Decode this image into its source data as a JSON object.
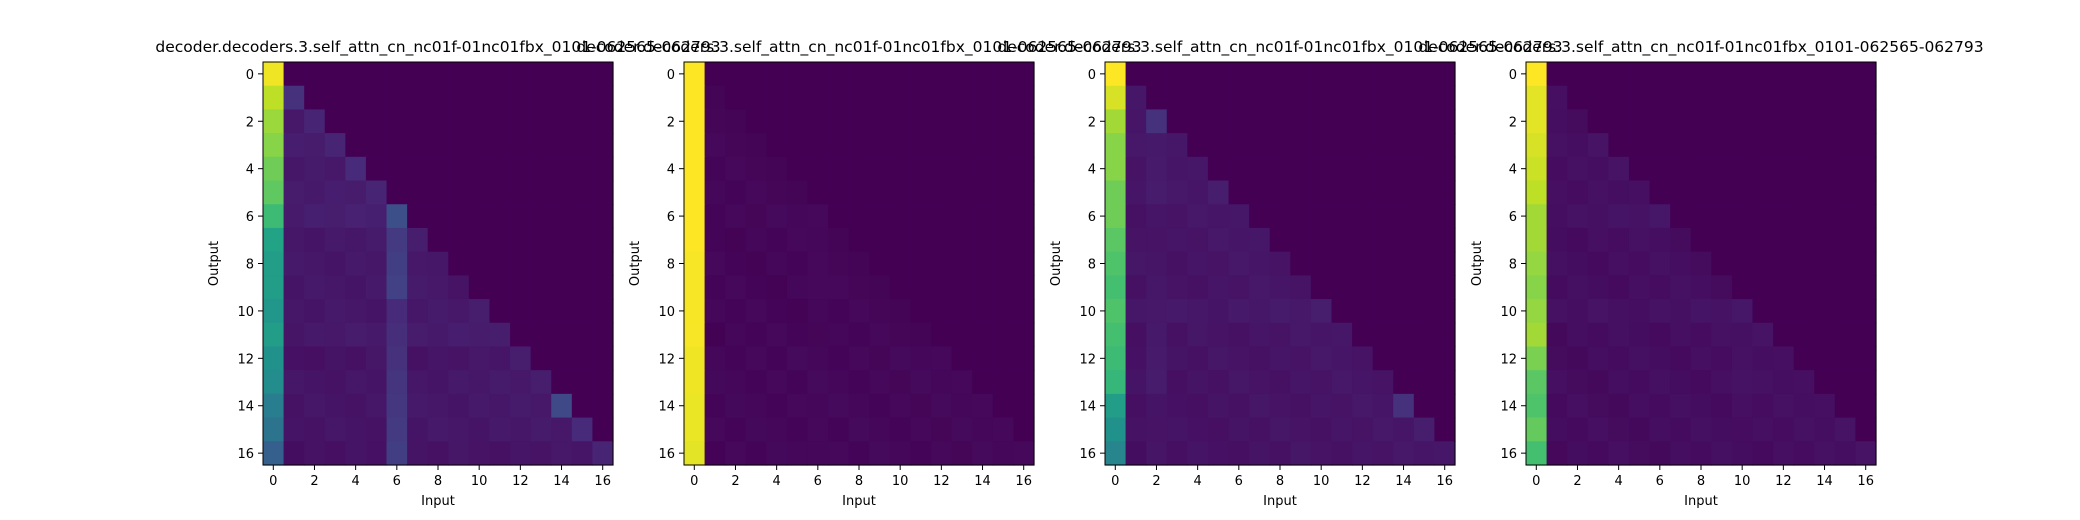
{
  "figure": {
    "background": "#ffffff",
    "colormap": "viridis"
  },
  "chart_data": [
    {
      "type": "heatmap",
      "title": "decoder.decoders.3.self_attn_cn_nc01f-01nc01fbx_0101-062565-062793",
      "xlabel": "Input",
      "ylabel": "Output",
      "x_ticks": [
        "0",
        "2",
        "4",
        "6",
        "8",
        "10",
        "12",
        "14",
        "16"
      ],
      "y_ticks": [
        "0",
        "2",
        "4",
        "6",
        "8",
        "10",
        "12",
        "14",
        "16"
      ],
      "vrange": [
        0,
        1
      ],
      "col0": [
        0.98,
        0.9,
        0.85,
        0.82,
        0.78,
        0.75,
        0.68,
        0.58,
        0.55,
        0.55,
        0.52,
        0.55,
        0.5,
        0.48,
        0.42,
        0.38,
        0.3
      ],
      "diag": [
        0,
        0.14,
        0.1,
        0.1,
        0.12,
        0.1,
        0.24,
        0.08,
        0.06,
        0.05,
        0.08,
        0.08,
        0.08,
        0.08,
        0.22,
        0.12,
        0.1
      ],
      "offdiag": [
        0.05,
        0.05,
        0.06,
        0.07,
        0.06,
        0.07,
        0.08,
        0.06,
        0.06,
        0.06,
        0.06,
        0.07,
        0.05,
        0.06,
        0.06,
        0.06,
        0.05
      ],
      "highlight_col": 6,
      "highlight_val": 0.2
    },
    {
      "type": "heatmap",
      "title": "decoder.decoders.3.self_attn_cn_nc01f-01nc01fbx_0101-062565-062793",
      "xlabel": "Input",
      "ylabel": "Output",
      "x_ticks": [
        "0",
        "2",
        "4",
        "6",
        "8",
        "10",
        "12",
        "14",
        "16"
      ],
      "y_ticks": [
        "0",
        "2",
        "4",
        "6",
        "8",
        "10",
        "12",
        "14",
        "16"
      ],
      "vrange": [
        0,
        1
      ],
      "col0": [
        1.0,
        1.0,
        1.0,
        1.0,
        1.0,
        1.0,
        1.0,
        1.0,
        0.99,
        0.99,
        0.99,
        0.99,
        0.98,
        0.98,
        0.97,
        0.97,
        0.96
      ],
      "diag": [
        0,
        0.01,
        0.01,
        0.01,
        0.01,
        0.01,
        0.02,
        0.01,
        0.01,
        0.01,
        0.01,
        0.01,
        0.02,
        0.02,
        0.02,
        0.02,
        0.02
      ],
      "offdiag": [
        0.005,
        0.005,
        0.005,
        0.005,
        0.005,
        0.005,
        0.01,
        0.005,
        0.005,
        0.005,
        0.005,
        0.005,
        0.01,
        0.01,
        0.01,
        0.01,
        0.01
      ],
      "highlight_col": 6,
      "highlight_val": 0.02
    },
    {
      "type": "heatmap",
      "title": "decoder.decoders.3.self_attn_cn_nc01f-01nc01fbx_0101-062565-062793",
      "xlabel": "Input",
      "ylabel": "Output",
      "x_ticks": [
        "0",
        "2",
        "4",
        "6",
        "8",
        "10",
        "12",
        "14",
        "16"
      ],
      "y_ticks": [
        "0",
        "2",
        "4",
        "6",
        "8",
        "10",
        "12",
        "14",
        "16"
      ],
      "vrange": [
        0,
        1
      ],
      "col0": [
        1.0,
        0.94,
        0.86,
        0.82,
        0.82,
        0.78,
        0.78,
        0.74,
        0.72,
        0.7,
        0.72,
        0.7,
        0.68,
        0.66,
        0.55,
        0.5,
        0.45
      ],
      "diag": [
        0,
        0.06,
        0.14,
        0.06,
        0.06,
        0.08,
        0.06,
        0.06,
        0.05,
        0.05,
        0.08,
        0.06,
        0.05,
        0.05,
        0.14,
        0.08,
        0.06
      ],
      "offdiag": [
        0.03,
        0.04,
        0.05,
        0.05,
        0.05,
        0.05,
        0.05,
        0.05,
        0.05,
        0.05,
        0.06,
        0.05,
        0.05,
        0.05,
        0.05,
        0.05,
        0.05
      ],
      "highlight_col": 2,
      "highlight_val": 0.08
    },
    {
      "type": "heatmap",
      "title": "decoder.decoders.3.self_attn_cn_nc01f-01nc01fbx_0101-062565-062793",
      "xlabel": "Input",
      "ylabel": "Output",
      "x_ticks": [
        "0",
        "2",
        "4",
        "6",
        "8",
        "10",
        "12",
        "14",
        "16"
      ],
      "y_ticks": [
        "0",
        "2",
        "4",
        "6",
        "8",
        "10",
        "12",
        "14",
        "16"
      ],
      "vrange": [
        0,
        1
      ],
      "col0": [
        1.0,
        0.96,
        0.96,
        0.94,
        0.92,
        0.9,
        0.86,
        0.86,
        0.84,
        0.82,
        0.84,
        0.86,
        0.8,
        0.74,
        0.72,
        0.76,
        0.7
      ],
      "diag": [
        0,
        0.04,
        0.03,
        0.05,
        0.05,
        0.04,
        0.06,
        0.03,
        0.03,
        0.03,
        0.06,
        0.05,
        0.04,
        0.04,
        0.04,
        0.05,
        0.05
      ],
      "offdiag": [
        0.02,
        0.03,
        0.03,
        0.03,
        0.03,
        0.03,
        0.04,
        0.03,
        0.03,
        0.03,
        0.04,
        0.03,
        0.03,
        0.03,
        0.03,
        0.03,
        0.03
      ],
      "highlight_col": 10,
      "highlight_val": 0.05
    }
  ]
}
